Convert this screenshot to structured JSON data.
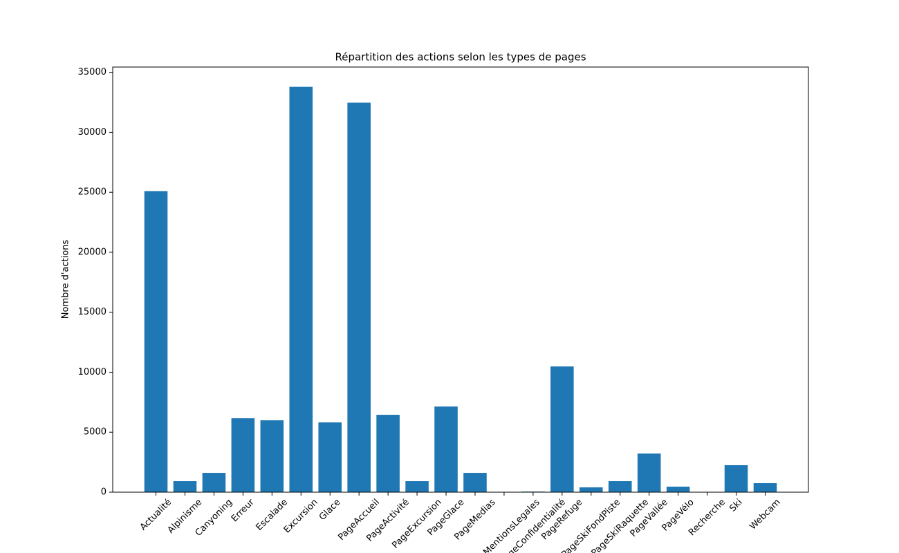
{
  "chart_data": {
    "type": "bar",
    "title": "Répartition des actions selon les types de pages",
    "y_label": "Nombre d'actions",
    "categories": [
      "Actualité",
      "Alpinisme",
      "Canyoning",
      "Erreur",
      "Escalade",
      "Excursion",
      "Glace",
      "PageAccueil",
      "PageActivité",
      "PageExcursion",
      "PageGlace",
      "PageMedias",
      "PageMentionsLegales",
      "PageConfidentialité",
      "PageRefuge",
      "PageSkiFondPiste",
      "PageSkiRaquette",
      "PageVallée",
      "PageVélo",
      "Recherche",
      "Ski",
      "Webcam"
    ],
    "values": [
      25100,
      920,
      1610,
      6160,
      5990,
      33790,
      5815,
      32470,
      6450,
      920,
      7140,
      1610,
      10,
      50,
      10480,
      400,
      920,
      3220,
      460,
      5,
      2250,
      750
    ],
    "color": "#1f77b4",
    "ylim": [
      0,
      35440
    ],
    "yticks": [
      0,
      5000,
      10000,
      15000,
      20000,
      25000,
      30000,
      35000
    ],
    "grid": false
  }
}
